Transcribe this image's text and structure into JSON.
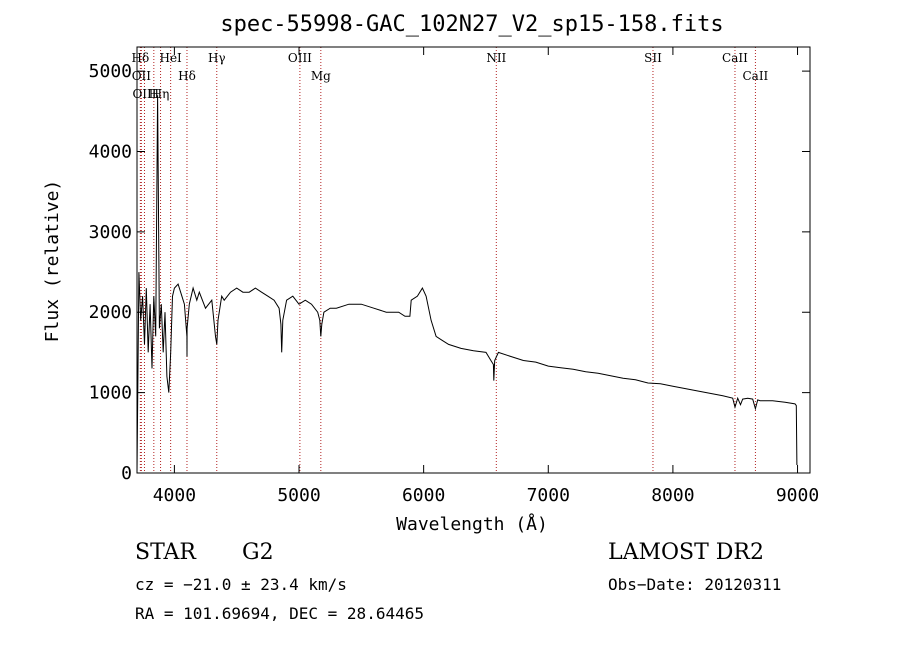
{
  "chart_data": {
    "type": "line",
    "title": "spec-55998-GAC_102N27_V2_sp15-158.fits",
    "xlabel": "Wavelength (Å)",
    "ylabel": "Flux (relative)",
    "xlim": [
      3700,
      9100
    ],
    "ylim": [
      0,
      5300
    ],
    "xticks": [
      4000,
      5000,
      6000,
      7000,
      8000,
      9000
    ],
    "yticks": [
      0,
      1000,
      2000,
      3000,
      4000,
      5000
    ],
    "grid": false,
    "series": [
      {
        "x": [
          3700,
          3715,
          3730,
          3745,
          3760,
          3775,
          3790,
          3805,
          3820,
          3835,
          3850,
          3865,
          3880,
          3895,
          3910,
          3925,
          3940,
          3955,
          3970,
          3985,
          4000,
          4030,
          4060,
          4080,
          4100,
          4101,
          4102,
          4120,
          4150,
          4180,
          4200,
          4250,
          4300,
          4330,
          4340,
          4350,
          4380,
          4400,
          4450,
          4500,
          4550,
          4600,
          4650,
          4700,
          4750,
          4800,
          4840,
          4855,
          4861,
          4870,
          4900,
          4950,
          5000,
          5050,
          5100,
          5150,
          5167,
          5175,
          5183,
          5200,
          5250,
          5300,
          5400,
          5500,
          5600,
          5700,
          5800,
          5850,
          5890,
          5900,
          5950,
          5990,
          6020,
          6060,
          6100,
          6150,
          6200,
          6300,
          6400,
          6500,
          6540,
          6560,
          6563,
          6570,
          6600,
          6700,
          6800,
          6900,
          7000,
          7100,
          7200,
          7300,
          7400,
          7500,
          7600,
          7700,
          7800,
          7900,
          8000,
          8100,
          8200,
          8300,
          8400,
          8480,
          8498,
          8520,
          8542,
          8560,
          8600,
          8640,
          8662,
          8680,
          8700,
          8800,
          8900,
          8980,
          8990,
          8995
        ],
        "y": [
          0,
          2500,
          1900,
          2200,
          1600,
          2300,
          1500,
          2100,
          1300,
          2200,
          1700,
          4700,
          1800,
          2100,
          1500,
          2000,
          1200,
          1000,
          1500,
          2200,
          2300,
          2350,
          2200,
          2100,
          1700,
          1450,
          1800,
          2100,
          2300,
          2150,
          2250,
          2050,
          2150,
          1700,
          1600,
          1900,
          2200,
          2150,
          2250,
          2300,
          2250,
          2250,
          2300,
          2250,
          2200,
          2150,
          2050,
          1850,
          1500,
          1900,
          2150,
          2200,
          2100,
          2150,
          2100,
          2000,
          1900,
          1700,
          1850,
          2000,
          2050,
          2050,
          2100,
          2100,
          2050,
          2000,
          2000,
          1950,
          1950,
          2150,
          2200,
          2300,
          2200,
          1900,
          1700,
          1650,
          1600,
          1550,
          1520,
          1500,
          1400,
          1350,
          1150,
          1400,
          1500,
          1450,
          1400,
          1380,
          1330,
          1310,
          1290,
          1260,
          1240,
          1210,
          1180,
          1160,
          1120,
          1110,
          1080,
          1050,
          1020,
          990,
          960,
          930,
          820,
          930,
          850,
          920,
          930,
          920,
          800,
          910,
          900,
          900,
          880,
          860,
          840,
          100
        ]
      }
    ],
    "lines": [
      {
        "label": "Hδ",
        "x": 3727
      },
      {
        "label": "OII",
        "x": 3735
      },
      {
        "label": "OIII",
        "x": 3760
      },
      {
        "label": "H",
        "x": 3835
      },
      {
        "label": "Hη",
        "x": 3889
      },
      {
        "label": "HeI",
        "x": 3970
      },
      {
        "label": "Hδ",
        "x": 4101
      },
      {
        "label": "Hγ",
        "x": 4340
      },
      {
        "label": "OIII",
        "x": 5007
      },
      {
        "label": "Mg",
        "x": 5175
      },
      {
        "label": "NII",
        "x": 6583
      },
      {
        "label": "SII",
        "x": 7840
      },
      {
        "label": "CaII",
        "x": 8498
      },
      {
        "label": "CaII",
        "x": 8662
      }
    ]
  },
  "footer": {
    "class": "STAR",
    "subclass": "G2",
    "survey": "LAMOST DR2",
    "cz": "cz = −21.0 ± 23.4 km/s",
    "obs_date": "Obs−Date: 20120311",
    "radec": "RA = 101.69694, DEC =  28.64465"
  }
}
